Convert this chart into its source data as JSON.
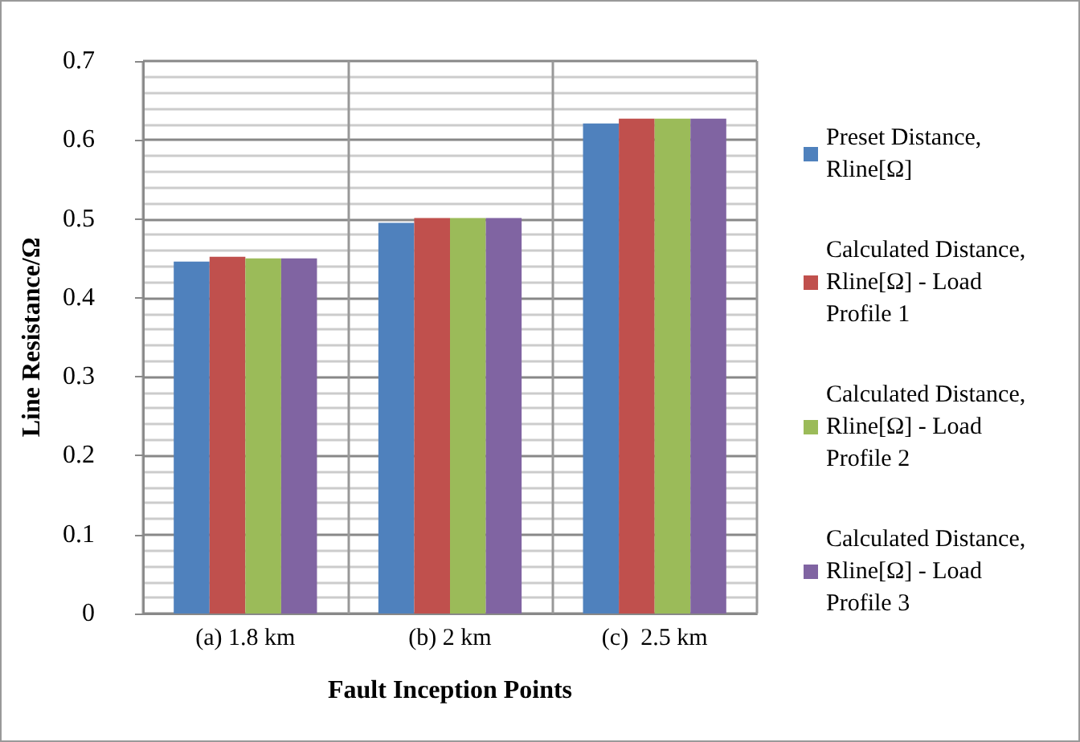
{
  "chart_data": {
    "type": "bar",
    "xlabel": "Fault Inception Points",
    "ylabel": "Line Resistance/Ω",
    "categories": [
      "(a) 1.8 km",
      "(b) 2 km",
      "(c)  2.5 km"
    ],
    "series": [
      {
        "name": "Preset Distance, Rline[Ω]",
        "color": "#4f81bd",
        "values": [
          0.446,
          0.495,
          0.621
        ]
      },
      {
        "name": "Calculated Distance, Rline[Ω] - Load Profile 1",
        "color": "#c0504d",
        "values": [
          0.452,
          0.501,
          0.627
        ]
      },
      {
        "name": "Calculated Distance, Rline[Ω] - Load Profile 2",
        "color": "#9bbb59",
        "values": [
          0.45,
          0.501,
          0.627
        ]
      },
      {
        "name": "Calculated Distance, Rline[Ω] - Load Profile 3",
        "color": "#8064a2",
        "values": [
          0.45,
          0.501,
          0.627
        ]
      }
    ],
    "ylim": [
      0,
      0.7
    ],
    "yticks": [
      0,
      0.1,
      0.2,
      0.3,
      0.4,
      0.5,
      0.6,
      0.7
    ],
    "grid": true,
    "legend": "right"
  }
}
